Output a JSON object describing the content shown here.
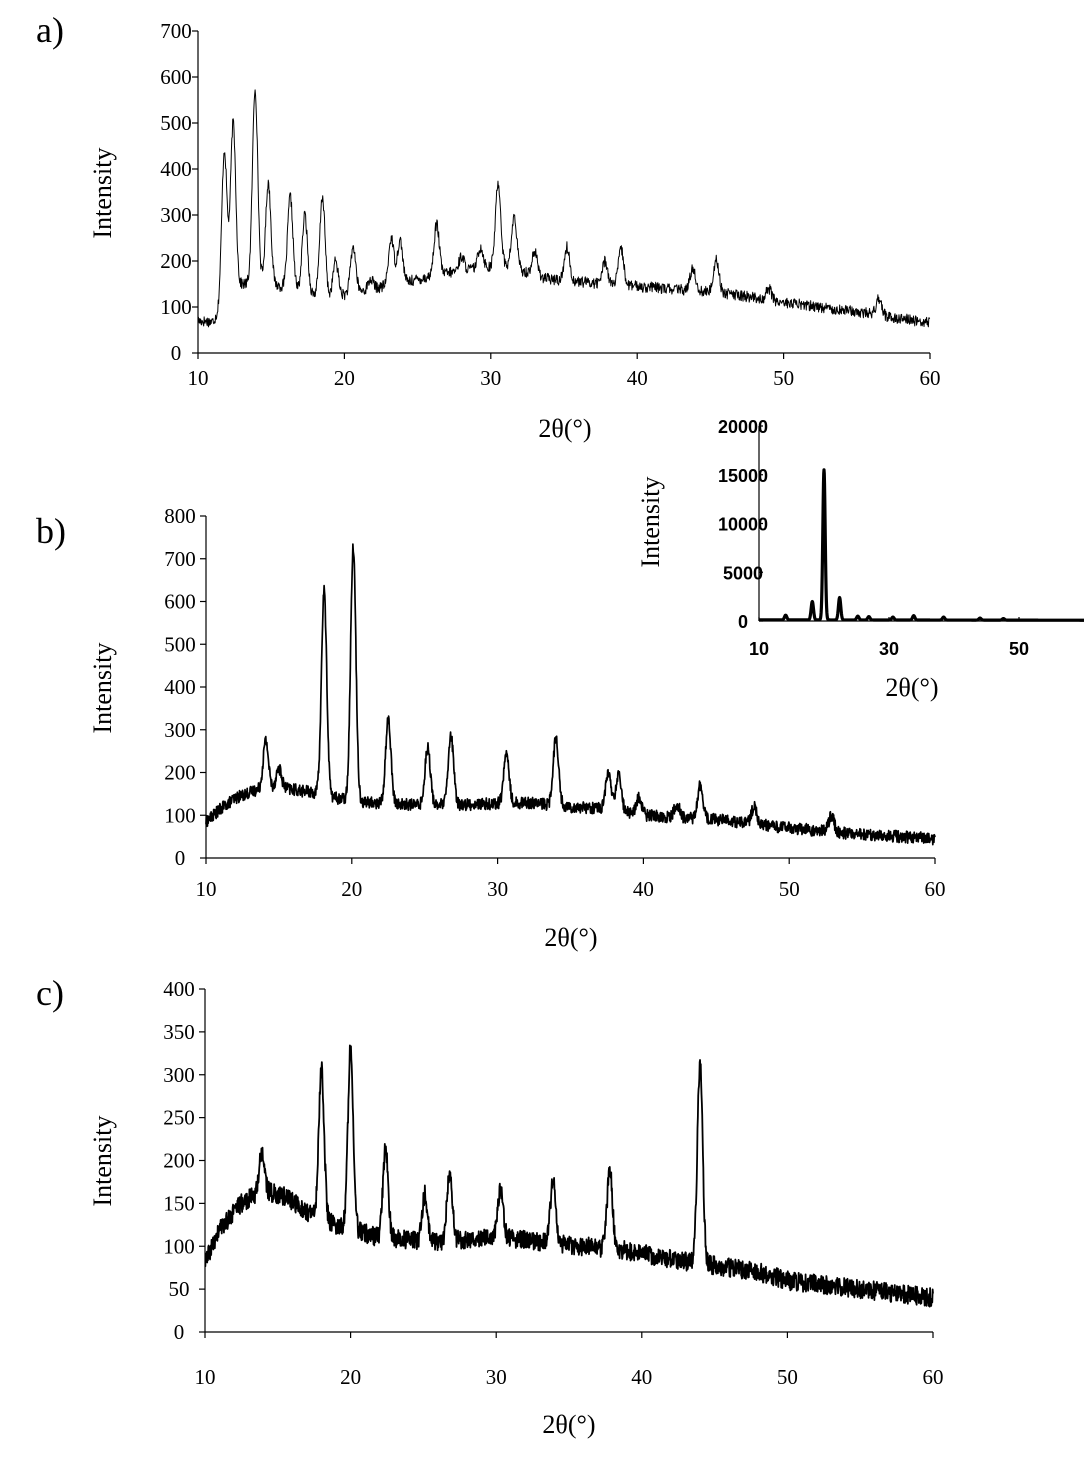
{
  "chart_data": [
    {
      "panel": "a)",
      "type": "line",
      "xlabel": "2θ(°)",
      "ylabel": "Intensity",
      "xlim": [
        10,
        60
      ],
      "ylim": [
        0,
        700
      ],
      "xticks": [
        10,
        20,
        30,
        40,
        50,
        60
      ],
      "yticks": [
        0,
        100,
        200,
        300,
        400,
        500,
        600,
        700
      ],
      "noise": 12,
      "baseline": [
        [
          10,
          70
        ],
        [
          11,
          68
        ],
        [
          11.5,
          90
        ],
        [
          13,
          150
        ],
        [
          15,
          150
        ],
        [
          19,
          120
        ],
        [
          22,
          140
        ],
        [
          25,
          160
        ],
        [
          28,
          180
        ],
        [
          31,
          190
        ],
        [
          34,
          160
        ],
        [
          38,
          150
        ],
        [
          42,
          140
        ],
        [
          46,
          130
        ],
        [
          50,
          110
        ],
        [
          55,
          90
        ],
        [
          60,
          65
        ]
      ],
      "peaks": [
        {
          "x": 11.8,
          "y": 440
        },
        {
          "x": 12.4,
          "y": 500
        },
        {
          "x": 13.9,
          "y": 575
        },
        {
          "x": 14.8,
          "y": 370
        },
        {
          "x": 16.3,
          "y": 340
        },
        {
          "x": 17.3,
          "y": 300
        },
        {
          "x": 18.5,
          "y": 340
        },
        {
          "x": 19.4,
          "y": 200
        },
        {
          "x": 20.6,
          "y": 230
        },
        {
          "x": 21.8,
          "y": 160
        },
        {
          "x": 23.2,
          "y": 250
        },
        {
          "x": 23.8,
          "y": 245
        },
        {
          "x": 26.3,
          "y": 280
        },
        {
          "x": 28.0,
          "y": 210
        },
        {
          "x": 29.3,
          "y": 230
        },
        {
          "x": 30.5,
          "y": 370
        },
        {
          "x": 31.6,
          "y": 295
        },
        {
          "x": 33.0,
          "y": 220
        },
        {
          "x": 35.2,
          "y": 230
        },
        {
          "x": 37.8,
          "y": 200
        },
        {
          "x": 38.9,
          "y": 225
        },
        {
          "x": 43.8,
          "y": 185
        },
        {
          "x": 45.4,
          "y": 205
        },
        {
          "x": 49.0,
          "y": 140
        },
        {
          "x": 56.5,
          "y": 120
        }
      ]
    },
    {
      "panel": "b)",
      "type": "line",
      "xlabel": "2θ(°)",
      "ylabel": "Intensity",
      "xlim": [
        10,
        60
      ],
      "ylim": [
        0,
        800
      ],
      "xticks": [
        10,
        20,
        30,
        40,
        50,
        60
      ],
      "yticks": [
        0,
        100,
        200,
        300,
        400,
        500,
        600,
        700,
        800
      ],
      "noise": 14,
      "baseline": [
        [
          10,
          85
        ],
        [
          11,
          115
        ],
        [
          12,
          140
        ],
        [
          13.5,
          160
        ],
        [
          15,
          165
        ],
        [
          17,
          155
        ],
        [
          19,
          140
        ],
        [
          21,
          130
        ],
        [
          24,
          125
        ],
        [
          28,
          125
        ],
        [
          32,
          130
        ],
        [
          35,
          120
        ],
        [
          38,
          115
        ],
        [
          40,
          100
        ],
        [
          45,
          90
        ],
        [
          50,
          70
        ],
        [
          55,
          55
        ],
        [
          60,
          45
        ]
      ],
      "peaks": [
        {
          "x": 14.1,
          "y": 275
        },
        {
          "x": 15.0,
          "y": 210
        },
        {
          "x": 18.1,
          "y": 625
        },
        {
          "x": 20.1,
          "y": 730
        },
        {
          "x": 22.5,
          "y": 325
        },
        {
          "x": 25.2,
          "y": 260
        },
        {
          "x": 26.8,
          "y": 285
        },
        {
          "x": 30.6,
          "y": 245
        },
        {
          "x": 34.0,
          "y": 285
        },
        {
          "x": 37.6,
          "y": 200
        },
        {
          "x": 38.3,
          "y": 195
        },
        {
          "x": 39.7,
          "y": 140
        },
        {
          "x": 42.3,
          "y": 125
        },
        {
          "x": 43.9,
          "y": 170
        },
        {
          "x": 47.6,
          "y": 120
        },
        {
          "x": 52.9,
          "y": 100
        }
      ]
    },
    {
      "panel": "inset",
      "type": "line",
      "xlabel": "2θ(°)",
      "ylabel": "Intensity",
      "xlim": [
        10,
        60
      ],
      "ylim": [
        0,
        20000
      ],
      "xticks": [
        10,
        30,
        50
      ],
      "yticks": [
        0,
        5000,
        10000,
        15000,
        20000
      ],
      "noise": 0,
      "baseline": [
        [
          10,
          120
        ],
        [
          60,
          80
        ]
      ],
      "peaks": [
        {
          "x": 14.1,
          "y": 600
        },
        {
          "x": 18.2,
          "y": 2000
        },
        {
          "x": 20.0,
          "y": 15500
        },
        {
          "x": 22.4,
          "y": 2400
        },
        {
          "x": 25.2,
          "y": 500
        },
        {
          "x": 26.9,
          "y": 450
        },
        {
          "x": 30.6,
          "y": 400
        },
        {
          "x": 33.8,
          "y": 550
        },
        {
          "x": 38.4,
          "y": 400
        },
        {
          "x": 44.0,
          "y": 300
        },
        {
          "x": 47.6,
          "y": 250
        }
      ]
    },
    {
      "panel": "c)",
      "type": "line",
      "xlabel": "2θ(°)",
      "ylabel": "Intensity",
      "xlim": [
        10,
        60
      ],
      "ylim": [
        0,
        400
      ],
      "xticks": [
        10,
        20,
        30,
        40,
        50,
        60
      ],
      "yticks": [
        0,
        50,
        100,
        150,
        200,
        250,
        300,
        350,
        400
      ],
      "noise": 11,
      "baseline": [
        [
          10,
          80
        ],
        [
          11,
          120
        ],
        [
          12.5,
          150
        ],
        [
          14,
          165
        ],
        [
          15.5,
          158
        ],
        [
          17,
          140
        ],
        [
          19,
          125
        ],
        [
          22,
          110
        ],
        [
          26,
          105
        ],
        [
          30,
          112
        ],
        [
          33,
          105
        ],
        [
          36,
          100
        ],
        [
          39,
          95
        ],
        [
          42,
          85
        ],
        [
          46,
          75
        ],
        [
          48,
          70
        ],
        [
          50,
          60
        ],
        [
          55,
          50
        ],
        [
          60,
          40
        ]
      ],
      "peaks": [
        {
          "x": 13.9,
          "y": 210
        },
        {
          "x": 18.0,
          "y": 308
        },
        {
          "x": 20.0,
          "y": 335
        },
        {
          "x": 22.4,
          "y": 215
        },
        {
          "x": 25.1,
          "y": 160
        },
        {
          "x": 26.8,
          "y": 185
        },
        {
          "x": 30.3,
          "y": 165
        },
        {
          "x": 33.9,
          "y": 175
        },
        {
          "x": 37.8,
          "y": 190
        },
        {
          "x": 44.0,
          "y": 315
        }
      ]
    }
  ]
}
